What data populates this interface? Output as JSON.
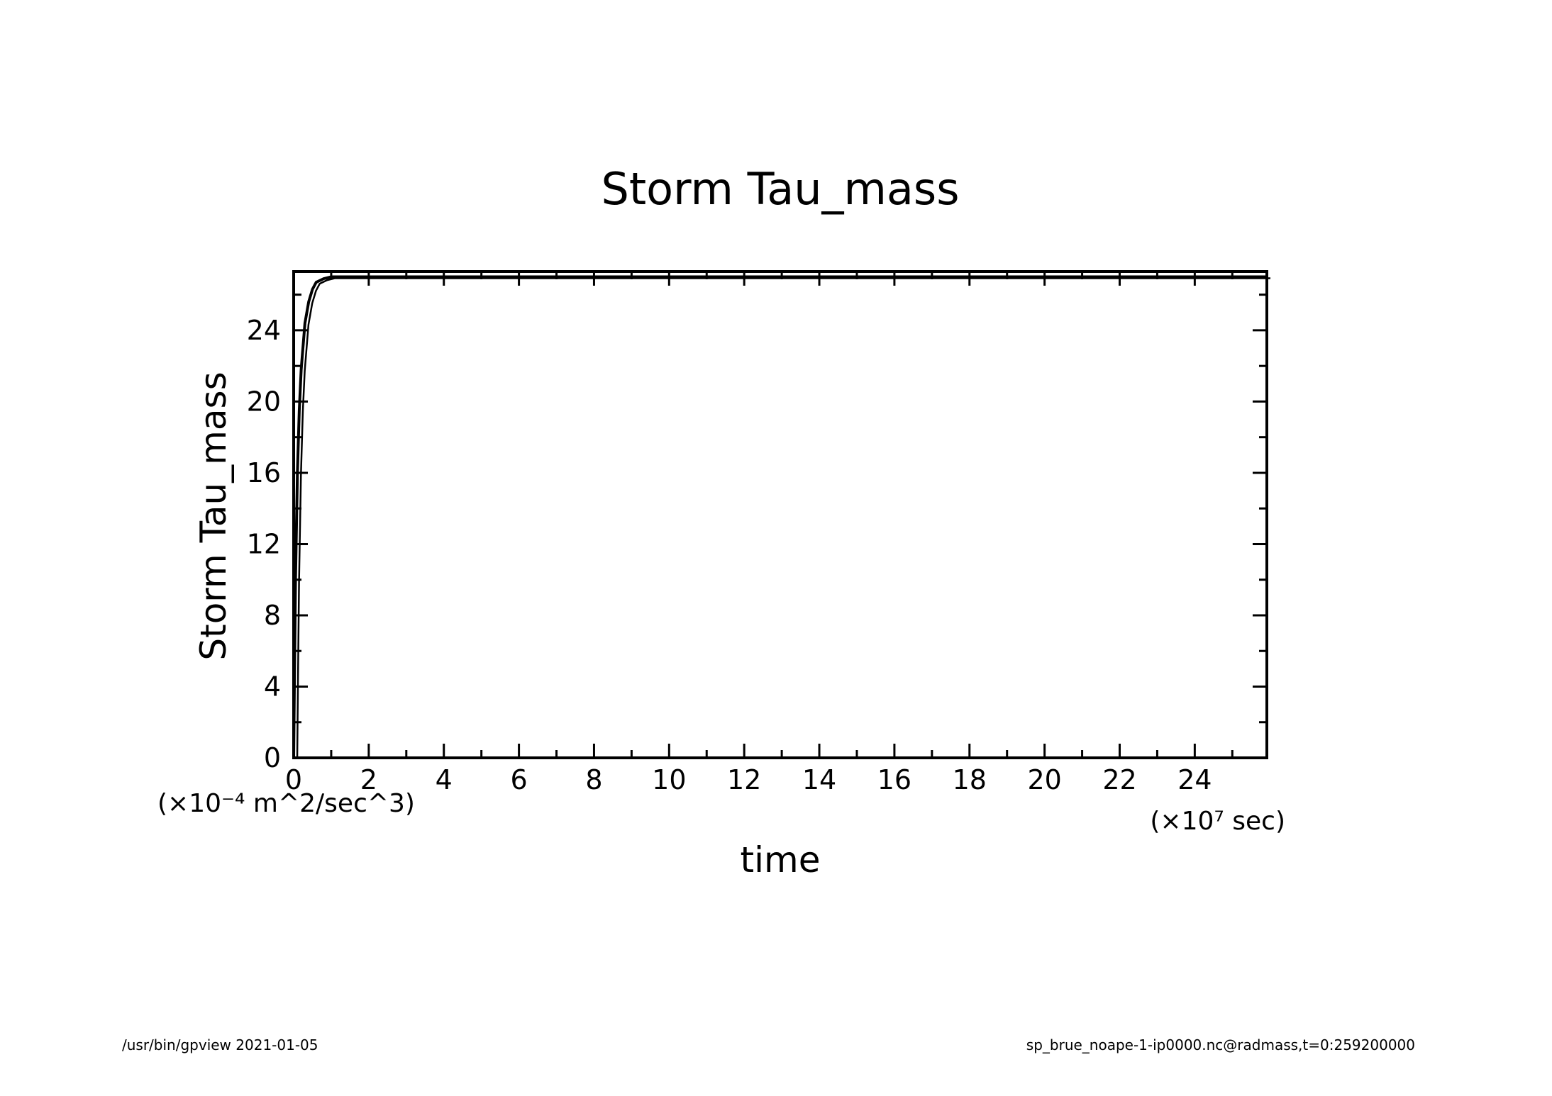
{
  "chart_data": {
    "type": "line",
    "title": "Storm Tau_mass",
    "xlabel": "time",
    "ylabel": "Storm Tau_mass",
    "x_unit": "(×10⁷ sec)",
    "y_unit": "(×10⁻⁴ m^2/sec^3)",
    "xlim": [
      0,
      25.92
    ],
    "ylim": [
      0,
      27.3
    ],
    "x_ticks": [
      0,
      2,
      4,
      6,
      8,
      10,
      12,
      14,
      16,
      18,
      20,
      22,
      24
    ],
    "x_tick_labels": [
      "0",
      "2",
      "4",
      "6",
      "8",
      "10",
      "12",
      "14",
      "16",
      "18",
      "20",
      "22",
      "24"
    ],
    "y_ticks": [
      0,
      4,
      8,
      12,
      16,
      20,
      24
    ],
    "y_tick_labels": [
      "0",
      "4",
      "8",
      "12",
      "16",
      "20",
      "24"
    ],
    "grid": false,
    "series": [
      {
        "x": [
          0,
          0.02,
          0.05,
          0.1,
          0.15,
          0.2,
          0.3,
          0.4,
          0.5,
          0.6,
          0.8,
          1.0,
          1.5,
          2,
          5,
          10,
          15,
          20,
          25.92
        ],
        "values": [
          0,
          4.5,
          10.0,
          16.0,
          19.5,
          21.8,
          24.4,
          25.6,
          26.3,
          26.7,
          26.9,
          27.0,
          27.0,
          27.0,
          27.0,
          27.0,
          27.0,
          27.0,
          27.0
        ]
      }
    ]
  },
  "footer": {
    "left": "/usr/bin/gpview   2021-01-05",
    "right": "sp_brue_noape-1-ip0000.nc@radmass,t=0:259200000"
  }
}
